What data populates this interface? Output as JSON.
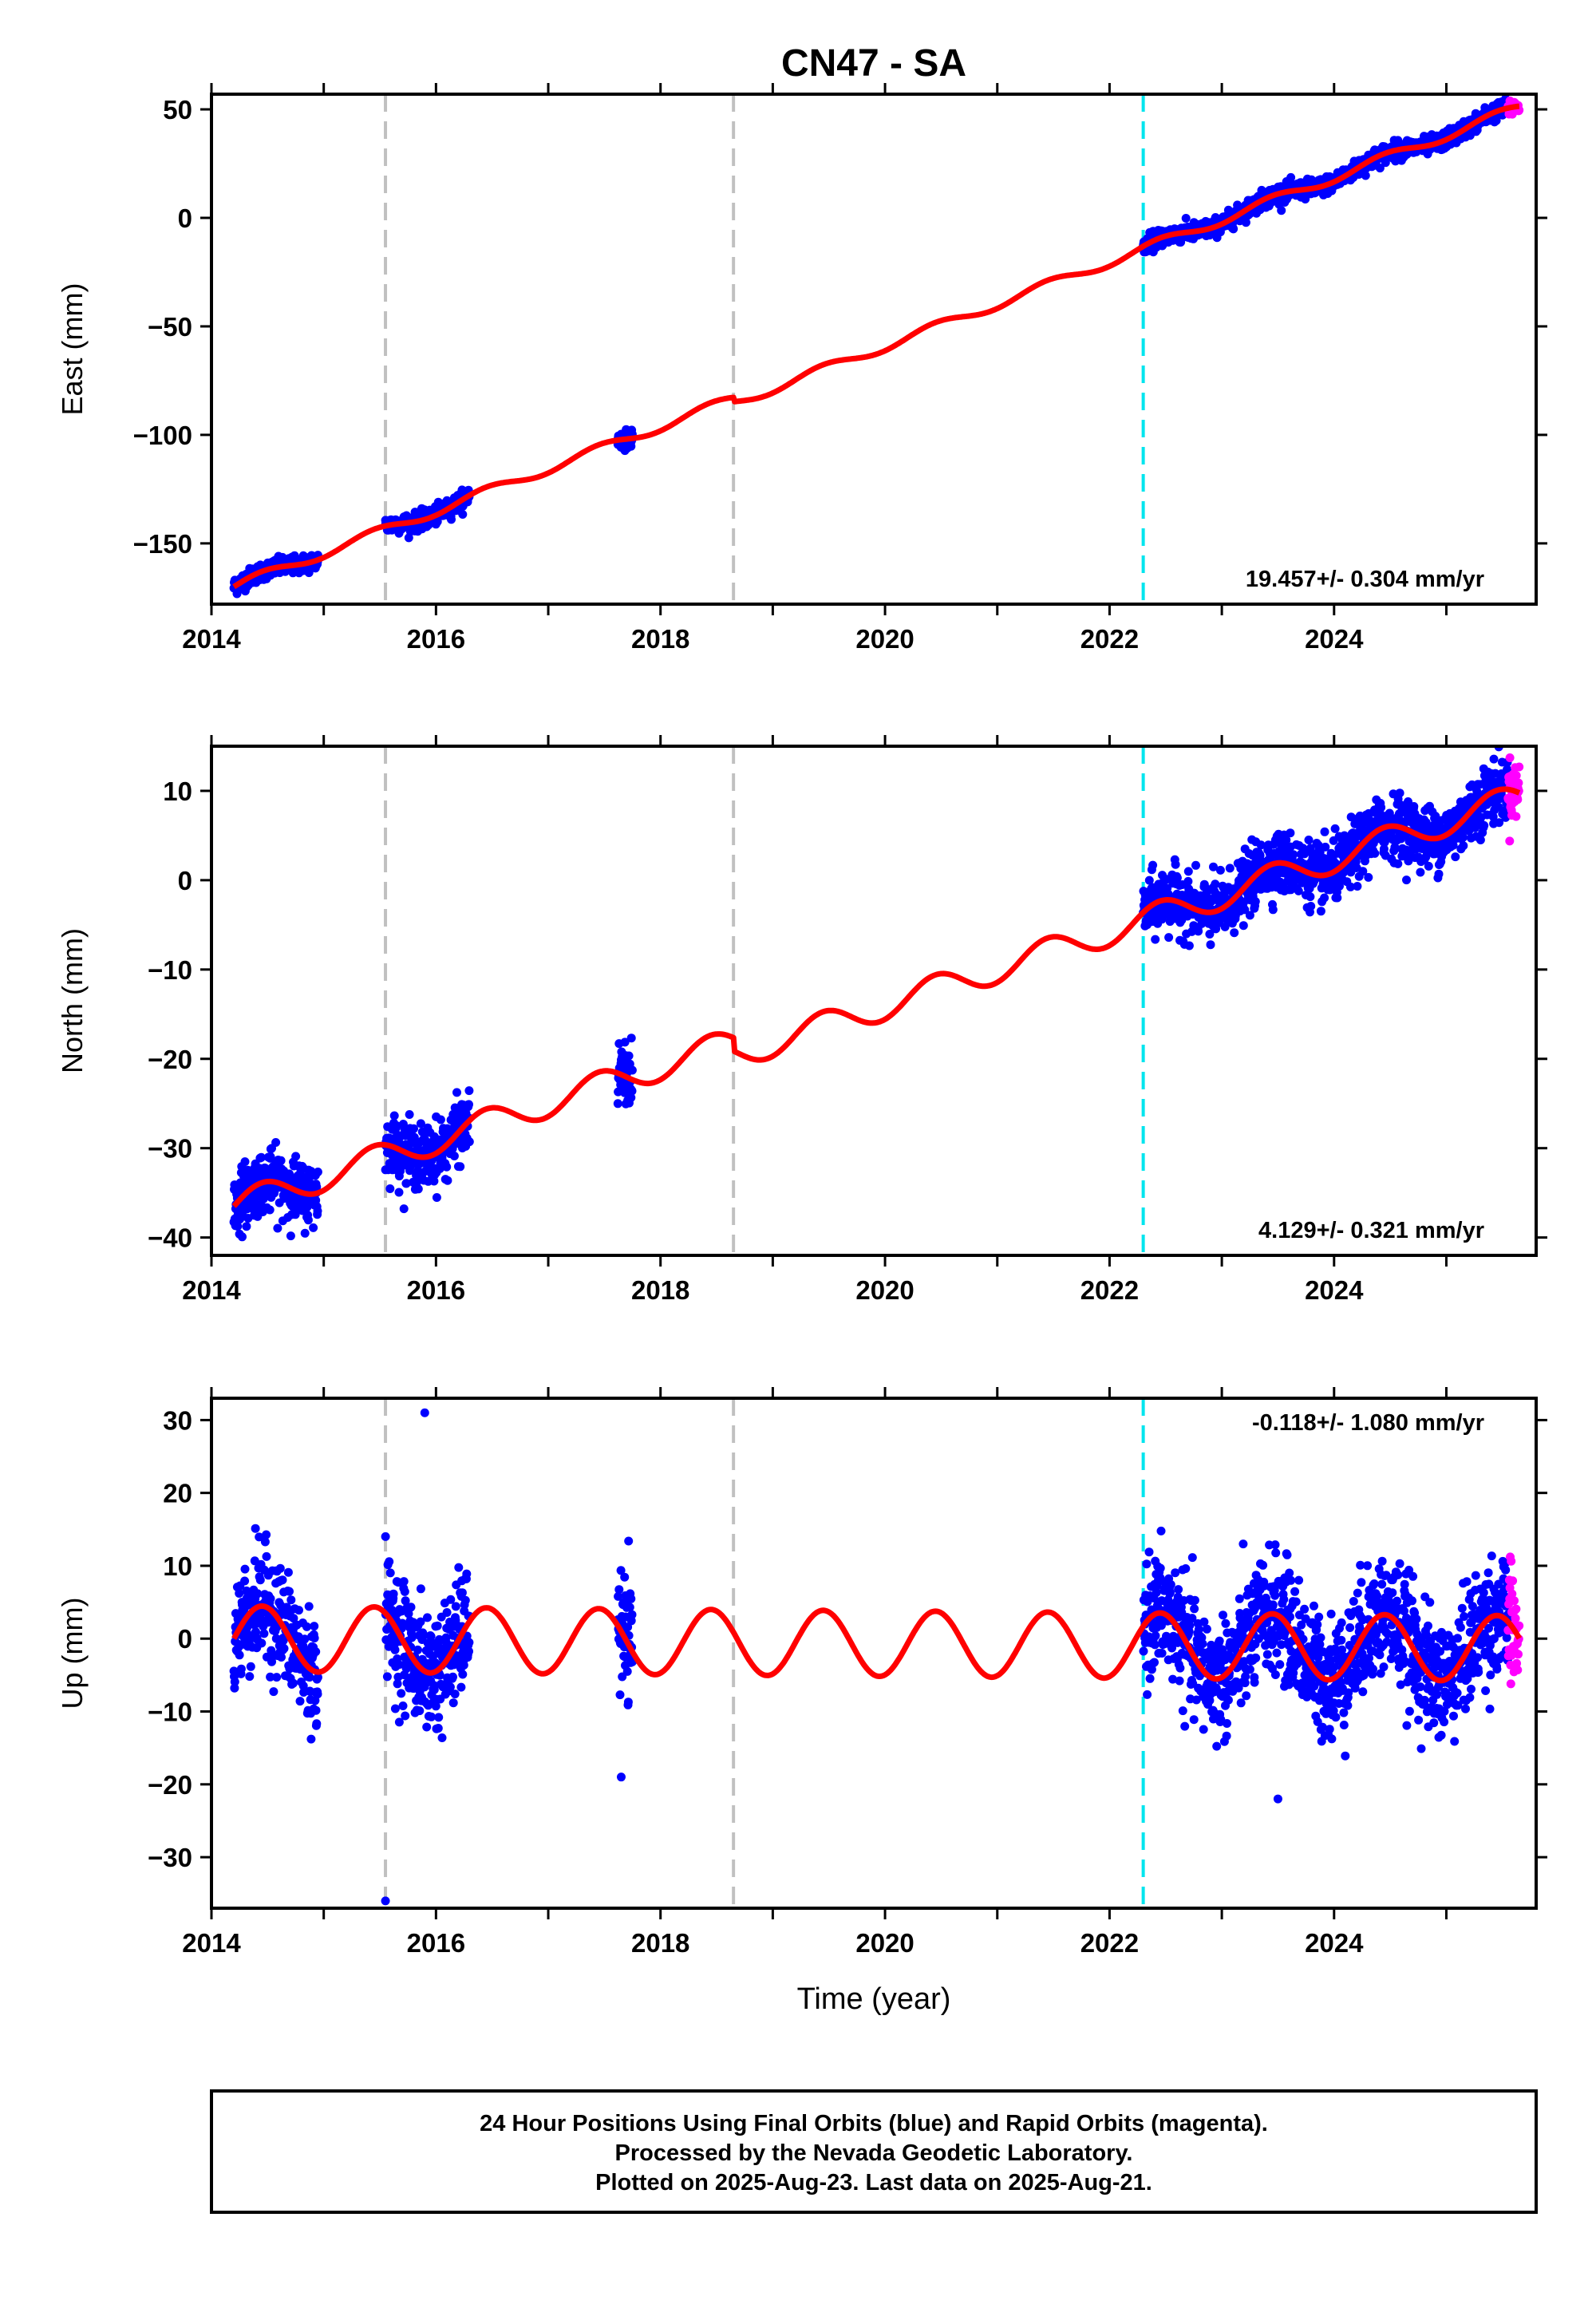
{
  "title": "CN47 - SA",
  "x_axis_label": "Time (year)",
  "footer": {
    "line1": "24 Hour Positions Using Final Orbits (blue) and Rapid Orbits (magenta).",
    "line2": "Processed by the Nevada Geodetic Laboratory.",
    "line3": "Plotted on 2025-Aug-23. Last data on 2025-Aug-21."
  },
  "colors": {
    "final_orbits": "#0000ff",
    "rapid_orbits": "#ff00ff",
    "model_fit": "#ff0000",
    "gray_lines": "#c0c0c0",
    "cyan_line": "#00e5ee"
  },
  "chart_data": [
    {
      "type": "scatter",
      "component": "East",
      "ylabel": "East (mm)",
      "xlim": [
        2014.0,
        2025.8
      ],
      "ylim": [
        -178,
        57
      ],
      "xticks": [
        "2014",
        "2016",
        "2018",
        "2020",
        "2022",
        "2024"
      ],
      "yticks": [
        "50",
        "0",
        "−50",
        "−100",
        "−150"
      ],
      "ytick_values": [
        50,
        0,
        -50,
        -100,
        -150
      ],
      "rate_label": "19.457+/- 0.304 mm/yr",
      "rate": 19.457,
      "offset": -170,
      "seasonal_amplitude": 2.2,
      "step_offset": -2,
      "noise": 2.0,
      "gray_dashed_lines": [
        2015.55,
        2018.65
      ],
      "cyan_dashed_line": 2022.3,
      "data_segments": [
        [
          2014.2,
          2014.95
        ],
        [
          2015.55,
          2016.3
        ],
        [
          2017.62,
          2017.75
        ],
        [
          2022.3,
          2025.55
        ]
      ],
      "rapid_segment": [
        2025.55,
        2025.65
      ],
      "fit_range": [
        2014.2,
        2025.65
      ]
    },
    {
      "type": "scatter",
      "component": "North",
      "ylabel": "North (mm)",
      "xlim": [
        2014.0,
        2025.8
      ],
      "ylim": [
        -42,
        15
      ],
      "xticks": [
        "2014",
        "2016",
        "2018",
        "2020",
        "2022",
        "2024"
      ],
      "yticks": [
        "10",
        "0",
        "−10",
        "−20",
        "−30",
        "−40"
      ],
      "ytick_values": [
        10,
        0,
        -10,
        -20,
        -30,
        -40
      ],
      "rate_label": "4.129+/- 0.321 mm/yr",
      "rate": 4.129,
      "offset": -36.5,
      "seasonal_amplitude": 1.6,
      "step_offset": -1.5,
      "noise": 1.7,
      "gray_dashed_lines": [
        2015.55,
        2018.65
      ],
      "cyan_dashed_line": 2022.3,
      "data_segments": [
        [
          2014.2,
          2014.95
        ],
        [
          2015.55,
          2016.3
        ],
        [
          2017.62,
          2017.75
        ],
        [
          2022.3,
          2025.55
        ]
      ],
      "rapid_segment": [
        2025.55,
        2025.65
      ],
      "fit_range": [
        2014.2,
        2025.65
      ]
    },
    {
      "type": "scatter",
      "component": "Up",
      "ylabel": "Up (mm)",
      "xlim": [
        2014.0,
        2025.8
      ],
      "ylim": [
        -37,
        33
      ],
      "xticks": [
        "2014",
        "2016",
        "2018",
        "2020",
        "2022",
        "2024"
      ],
      "yticks": [
        "30",
        "20",
        "10",
        "0",
        "−10",
        "−20",
        "−30"
      ],
      "ytick_values": [
        30,
        20,
        10,
        0,
        -10,
        -20,
        -30
      ],
      "rate_label": "-0.118+/- 1.080 mm/yr",
      "rate": -0.118,
      "offset": 0,
      "seasonal_amplitude": 4.5,
      "step_offset": 0,
      "noise": 4.0,
      "gray_dashed_lines": [
        2015.55,
        2018.65
      ],
      "cyan_dashed_line": 2022.3,
      "data_segments": [
        [
          2014.2,
          2014.95
        ],
        [
          2015.55,
          2016.3
        ],
        [
          2017.62,
          2017.75
        ],
        [
          2022.3,
          2025.55
        ]
      ],
      "rapid_segment": [
        2025.55,
        2025.65
      ],
      "fit_range": [
        2014.2,
        2025.65
      ],
      "outliers": [
        [
          2015.55,
          -36
        ],
        [
          2015.9,
          31
        ],
        [
          2017.65,
          -19
        ],
        [
          2023.5,
          -22
        ]
      ]
    }
  ]
}
